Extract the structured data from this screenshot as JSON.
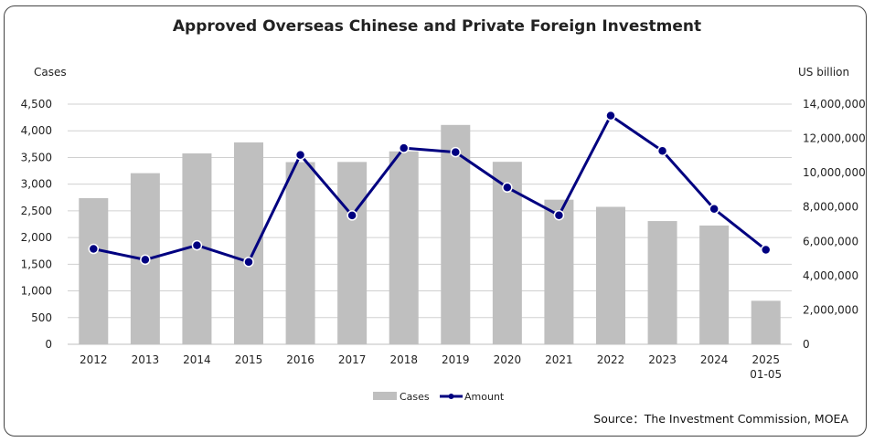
{
  "chart_data": {
    "type": "bar",
    "title": "Approved Overseas Chinese and Private Foreign Investment",
    "categories": [
      "2012",
      "2013",
      "2014",
      "2015",
      "2016",
      "2017",
      "2018",
      "2019",
      "2020",
      "2021",
      "2022",
      "2023",
      "2024",
      "2025|01-05"
    ],
    "series": [
      {
        "name": "Cases",
        "type": "bar",
        "axis": "left",
        "color": "#bfbfbf",
        "values": [
          2738,
          3206,
          3577,
          3783,
          3413,
          3416,
          3615,
          4110,
          3419,
          2709,
          2575,
          2309,
          2225,
          815
        ]
      },
      {
        "name": "Amount",
        "type": "line",
        "axis": "right",
        "color": "#000080",
        "values": [
          5560000,
          4930000,
          5770000,
          4800000,
          11040000,
          7510000,
          11440000,
          11200000,
          9140000,
          7520000,
          13330000,
          11270000,
          7890000,
          5510000
        ]
      }
    ],
    "ylabel_left": "Cases",
    "ylabel_right": "US billion",
    "ylim_left": [
      0,
      4500
    ],
    "yticks_left": [
      "0",
      "500",
      "1,000",
      "1,500",
      "2,000",
      "2,500",
      "3,000",
      "3,500",
      "4,000",
      "4,500"
    ],
    "ylim_right": [
      0,
      14000000
    ],
    "yticks_right": [
      "0",
      "2,000,000",
      "4,000,000",
      "6,000,000",
      "8,000,000",
      "10,000,000",
      "12,000,000",
      "14,000,000"
    ],
    "grid": true,
    "legend_position": "bottom-center",
    "source": "Source：The Investment Commission, MOEA"
  }
}
